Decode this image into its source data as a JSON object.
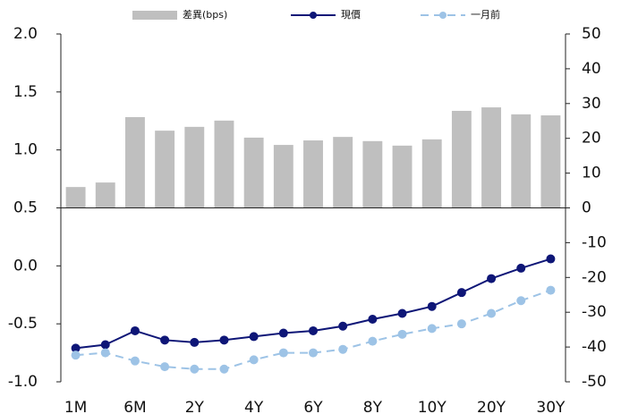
{
  "chart_data": {
    "type": "bar-line",
    "categories": [
      "1M",
      null,
      "6M",
      null,
      "2Y",
      null,
      "4Y",
      null,
      "6Y",
      null,
      "8Y",
      null,
      "10Y",
      null,
      "20Y",
      null,
      "30Y"
    ],
    "series": [
      {
        "name": "差異(bps)",
        "type": "bar",
        "axis": "y2",
        "color": "#bfbfbf",
        "values": [
          6,
          7.3,
          26.1,
          22.2,
          23.3,
          25.1,
          20.2,
          18.1,
          19.4,
          20.4,
          19.2,
          17.9,
          19.7,
          27.9,
          28.9,
          26.9,
          26.6
        ]
      },
      {
        "name": "現價",
        "type": "line",
        "axis": "y",
        "color": "#0e1677",
        "dash": "solid",
        "values": [
          -0.71,
          -0.68,
          -0.56,
          -0.64,
          -0.66,
          -0.64,
          -0.61,
          -0.58,
          -0.56,
          -0.52,
          -0.46,
          -0.41,
          -0.35,
          -0.23,
          -0.11,
          -0.02,
          0.06
        ]
      },
      {
        "name": "一月前",
        "type": "line",
        "axis": "y",
        "color": "#9dc3e6",
        "dash": "dashed",
        "values": [
          -0.77,
          -0.75,
          -0.82,
          -0.87,
          -0.89,
          -0.89,
          -0.81,
          -0.75,
          -0.75,
          -0.72,
          -0.65,
          -0.59,
          -0.54,
          -0.5,
          -0.41,
          -0.3,
          -0.21
        ]
      }
    ],
    "ylim": [
      -1,
      2
    ],
    "yticks": [
      {
        "value": -1,
        "label": "-1.0"
      },
      -0.5,
      {
        "value": 0,
        "label": "0.0"
      },
      0.5,
      {
        "value": 1,
        "label": "1.0"
      },
      1.5,
      {
        "value": 2,
        "label": "2.0"
      }
    ],
    "y2lim": [
      -50,
      50
    ],
    "y2ticks": [
      -50,
      -40,
      -30,
      -20,
      -10,
      0,
      10,
      20,
      30,
      40,
      50
    ],
    "legend": "top"
  }
}
